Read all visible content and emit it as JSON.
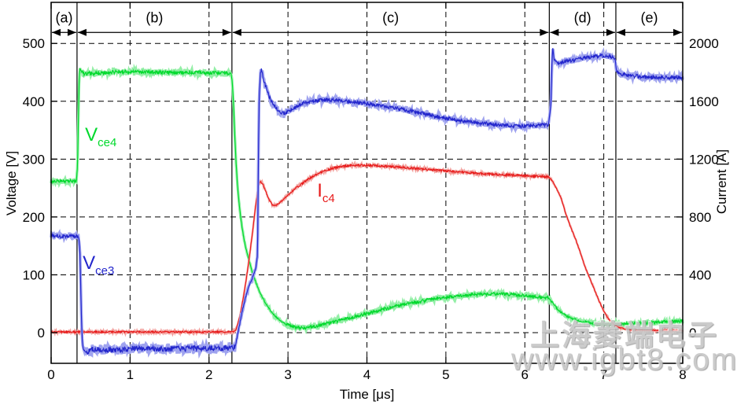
{
  "watermark": {
    "line1": "上海菱端电子",
    "line2": "www.igbt8.com"
  },
  "chart_data": {
    "type": "line",
    "title": "",
    "xlabel": "Time [μs]",
    "ylabel_left": "Voltage [V]",
    "ylabel_right": "Current [A]",
    "xlim": [
      0,
      8
    ],
    "ylim_left": [
      -53,
      571
    ],
    "right_per_left": 4,
    "xticks": [
      0,
      1,
      2,
      3,
      4,
      5,
      6,
      7,
      8
    ],
    "yticks_left": [
      0,
      100,
      200,
      300,
      400,
      500
    ],
    "yticks_right": [
      0,
      400,
      800,
      1200,
      1600,
      2000
    ],
    "grid": "dashed",
    "legend_position": "inline-annotations",
    "regions": {
      "boundaries_us": [
        0,
        0.328,
        2.29,
        6.31,
        7.153,
        8
      ],
      "labels": [
        "(a)",
        "(b)",
        "(c)",
        "(d)",
        "(e)"
      ],
      "arrow_y_volts": 519,
      "label_y_volts": 536
    },
    "series": [
      {
        "name": "Vce4",
        "annotation_main": "V",
        "annotation_sub": "ce4",
        "axis": "left",
        "color": "#00d92c",
        "halo_color": "#93efa6",
        "halo_width": 3.4,
        "annotation_pos": {
          "x": 0.43,
          "y": 332
        },
        "noise_zones": [
          [
            0,
            0.33,
            5
          ],
          [
            0.33,
            0.4,
            2
          ],
          [
            0.4,
            2.27,
            6
          ],
          [
            2.27,
            2.95,
            2
          ],
          [
            2.95,
            6.3,
            5
          ],
          [
            6.3,
            6.75,
            3
          ],
          [
            6.75,
            8,
            5
          ]
        ],
        "points": [
          [
            0,
            262
          ],
          [
            0.32,
            262
          ],
          [
            0.335,
            290
          ],
          [
            0.345,
            370
          ],
          [
            0.355,
            435
          ],
          [
            0.365,
            458
          ],
          [
            0.38,
            452
          ],
          [
            0.42,
            447
          ],
          [
            0.6,
            449
          ],
          [
            0.9,
            451
          ],
          [
            1.3,
            450
          ],
          [
            1.7,
            450
          ],
          [
            2.1,
            449
          ],
          [
            2.28,
            448
          ],
          [
            2.295,
            432
          ],
          [
            2.31,
            395
          ],
          [
            2.325,
            345
          ],
          [
            2.34,
            300
          ],
          [
            2.36,
            255
          ],
          [
            2.38,
            225
          ],
          [
            2.4,
            200
          ],
          [
            2.43,
            172
          ],
          [
            2.46,
            150
          ],
          [
            2.5,
            128
          ],
          [
            2.54,
            108
          ],
          [
            2.58,
            92
          ],
          [
            2.62,
            78
          ],
          [
            2.66,
            65
          ],
          [
            2.72,
            50
          ],
          [
            2.78,
            38
          ],
          [
            2.84,
            28
          ],
          [
            2.92,
            19
          ],
          [
            3.0,
            13
          ],
          [
            3.1,
            9
          ],
          [
            3.2,
            8
          ],
          [
            3.3,
            10
          ],
          [
            3.45,
            14
          ],
          [
            3.6,
            19
          ],
          [
            3.8,
            26
          ],
          [
            4.0,
            33
          ],
          [
            4.2,
            40
          ],
          [
            4.4,
            47
          ],
          [
            4.6,
            52
          ],
          [
            4.8,
            57
          ],
          [
            5.0,
            61
          ],
          [
            5.2,
            64
          ],
          [
            5.4,
            66
          ],
          [
            5.6,
            67
          ],
          [
            5.8,
            66
          ],
          [
            6.0,
            64
          ],
          [
            6.15,
            62
          ],
          [
            6.3,
            60
          ],
          [
            6.36,
            50
          ],
          [
            6.42,
            40
          ],
          [
            6.5,
            31
          ],
          [
            6.6,
            24
          ],
          [
            6.72,
            19
          ],
          [
            6.85,
            16
          ],
          [
            7.0,
            15
          ],
          [
            7.2,
            15
          ],
          [
            7.4,
            16
          ],
          [
            7.6,
            17
          ],
          [
            7.8,
            19
          ],
          [
            8,
            20
          ]
        ]
      },
      {
        "name": "Ic4",
        "annotation_main": "I",
        "annotation_sub": "c4",
        "axis": "right",
        "color": "#e71a1a",
        "halo_color": "#f3a09d",
        "halo_width": 2.4,
        "annotation_pos": {
          "x": 3.37,
          "y": 940
        },
        "noise_zones": [
          [
            0,
            2.31,
            11
          ],
          [
            2.31,
            3.1,
            8
          ],
          [
            3.1,
            6.3,
            13
          ],
          [
            6.3,
            7.15,
            6
          ],
          [
            7.15,
            8,
            9
          ]
        ],
        "points": [
          [
            0,
            5
          ],
          [
            2.31,
            5
          ],
          [
            2.34,
            20
          ],
          [
            2.37,
            70
          ],
          [
            2.4,
            140
          ],
          [
            2.43,
            230
          ],
          [
            2.46,
            330
          ],
          [
            2.49,
            440
          ],
          [
            2.52,
            560
          ],
          [
            2.55,
            690
          ],
          [
            2.58,
            830
          ],
          [
            2.61,
            960
          ],
          [
            2.63,
            1020
          ],
          [
            2.65,
            1045
          ],
          [
            2.68,
            1030
          ],
          [
            2.72,
            975
          ],
          [
            2.76,
            920
          ],
          [
            2.8,
            885
          ],
          [
            2.84,
            878
          ],
          [
            2.9,
            900
          ],
          [
            3.0,
            950
          ],
          [
            3.1,
            1000
          ],
          [
            3.25,
            1060
          ],
          [
            3.4,
            1105
          ],
          [
            3.55,
            1135
          ],
          [
            3.7,
            1152
          ],
          [
            3.85,
            1158
          ],
          [
            4.0,
            1158
          ],
          [
            4.2,
            1152
          ],
          [
            4.4,
            1145
          ],
          [
            4.7,
            1132
          ],
          [
            5.0,
            1118
          ],
          [
            5.3,
            1105
          ],
          [
            5.6,
            1095
          ],
          [
            5.9,
            1088
          ],
          [
            6.1,
            1083
          ],
          [
            6.3,
            1078
          ],
          [
            6.34,
            1055
          ],
          [
            6.4,
            1000
          ],
          [
            6.46,
            930
          ],
          [
            6.52,
            820
          ],
          [
            6.58,
            730
          ],
          [
            6.64,
            650
          ],
          [
            6.7,
            560
          ],
          [
            6.76,
            460
          ],
          [
            6.82,
            380
          ],
          [
            6.88,
            300
          ],
          [
            6.94,
            220
          ],
          [
            7.0,
            150
          ],
          [
            7.06,
            95
          ],
          [
            7.12,
            60
          ],
          [
            7.18,
            38
          ],
          [
            7.26,
            25
          ],
          [
            7.4,
            18
          ],
          [
            7.6,
            15
          ],
          [
            7.8,
            14
          ],
          [
            8,
            14
          ]
        ]
      },
      {
        "name": "Vce3",
        "annotation_main": "V",
        "annotation_sub": "ce3",
        "axis": "left",
        "color": "#2326cc",
        "halo_color": "#9fa3ef",
        "halo_width": 3.6,
        "annotation_pos": {
          "x": 0.4,
          "y": 110
        },
        "noise_zones": [
          [
            0,
            0.35,
            6
          ],
          [
            0.35,
            0.45,
            2
          ],
          [
            0.45,
            2.33,
            9
          ],
          [
            2.33,
            2.63,
            3
          ],
          [
            2.63,
            6.3,
            6
          ],
          [
            6.3,
            6.42,
            3
          ],
          [
            6.42,
            7.14,
            6
          ],
          [
            7.14,
            8,
            6
          ]
        ],
        "points": [
          [
            0,
            167
          ],
          [
            0.35,
            166
          ],
          [
            0.365,
            140
          ],
          [
            0.375,
            80
          ],
          [
            0.385,
            20
          ],
          [
            0.395,
            -15
          ],
          [
            0.41,
            -30
          ],
          [
            0.45,
            -34
          ],
          [
            0.55,
            -28
          ],
          [
            0.8,
            -30
          ],
          [
            1.1,
            -27
          ],
          [
            1.5,
            -28
          ],
          [
            1.9,
            -27
          ],
          [
            2.2,
            -27
          ],
          [
            2.33,
            -25
          ],
          [
            2.37,
            2
          ],
          [
            2.41,
            30
          ],
          [
            2.45,
            55
          ],
          [
            2.5,
            78
          ],
          [
            2.55,
            95
          ],
          [
            2.59,
            110
          ],
          [
            2.615,
            135
          ],
          [
            2.625,
            300
          ],
          [
            2.635,
            405
          ],
          [
            2.65,
            448
          ],
          [
            2.665,
            455
          ],
          [
            2.69,
            438
          ],
          [
            2.72,
            425
          ],
          [
            2.76,
            408
          ],
          [
            2.82,
            394
          ],
          [
            2.9,
            380
          ],
          [
            2.96,
            379
          ],
          [
            3.05,
            387
          ],
          [
            3.2,
            397
          ],
          [
            3.4,
            402
          ],
          [
            3.6,
            402
          ],
          [
            3.8,
            399
          ],
          [
            4.0,
            396
          ],
          [
            4.2,
            392
          ],
          [
            4.45,
            386
          ],
          [
            4.7,
            379
          ],
          [
            4.95,
            372
          ],
          [
            5.2,
            366
          ],
          [
            5.45,
            362
          ],
          [
            5.7,
            359
          ],
          [
            5.95,
            357
          ],
          [
            6.15,
            358
          ],
          [
            6.3,
            360
          ],
          [
            6.33,
            395
          ],
          [
            6.345,
            470
          ],
          [
            6.355,
            493
          ],
          [
            6.37,
            472
          ],
          [
            6.42,
            465
          ],
          [
            6.5,
            469
          ],
          [
            6.6,
            471
          ],
          [
            6.7,
            474
          ],
          [
            6.8,
            476
          ],
          [
            6.9,
            478
          ],
          [
            7.0,
            479
          ],
          [
            7.08,
            478
          ],
          [
            7.14,
            474
          ],
          [
            7.16,
            455
          ],
          [
            7.19,
            448
          ],
          [
            7.3,
            445
          ],
          [
            7.5,
            442
          ],
          [
            7.7,
            441
          ],
          [
            8,
            441
          ]
        ]
      }
    ]
  }
}
